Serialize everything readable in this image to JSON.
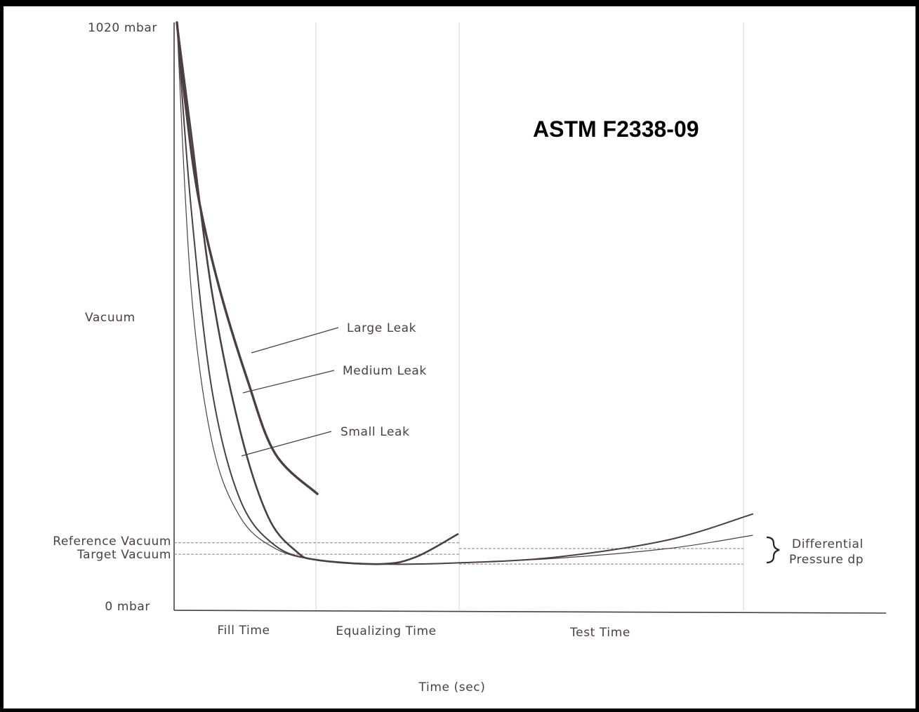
{
  "chart_data": {
    "type": "line",
    "title": "ASTM F2338-09",
    "xlabel": "Time (sec)",
    "ylabel": "Vacuum",
    "y_top_label": "1020 mbar",
    "y_bottom_label": "0 mbar",
    "ylim": [
      0,
      1020
    ],
    "phases": [
      "Fill Time",
      "Equalizing Time",
      "Test Time"
    ],
    "reference_lines": [
      {
        "label": "Reference Vacuum",
        "value": 115
      },
      {
        "label": "Target Vacuum",
        "value": 95
      }
    ],
    "series": [
      {
        "name": "Large Leak",
        "points": [
          [
            0.0,
            1020
          ],
          [
            0.06,
            880
          ],
          [
            0.15,
            720
          ],
          [
            0.3,
            560
          ],
          [
            0.5,
            400
          ],
          [
            0.7,
            270
          ],
          [
            1.0,
            200
          ]
        ]
      },
      {
        "name": "Medium Leak",
        "points": [
          [
            0.0,
            1020
          ],
          [
            0.1,
            830
          ],
          [
            0.25,
            550
          ],
          [
            0.45,
            310
          ],
          [
            0.65,
            160
          ],
          [
            0.85,
            100
          ],
          [
            1.0,
            85
          ],
          [
            1.45,
            78
          ],
          [
            1.7,
            90
          ],
          [
            2.0,
            130
          ]
        ]
      },
      {
        "name": "Small Leak",
        "points": [
          [
            0.0,
            1020
          ],
          [
            0.1,
            700
          ],
          [
            0.25,
            380
          ],
          [
            0.45,
            190
          ],
          [
            0.7,
            110
          ],
          [
            1.0,
            85
          ],
          [
            1.45,
            78
          ],
          [
            2.0,
            80
          ],
          [
            2.7,
            90
          ],
          [
            3.5,
            120
          ],
          [
            4.1,
            165
          ]
        ]
      },
      {
        "name": "",
        "points": [
          [
            0.0,
            1020
          ],
          [
            0.1,
            560
          ],
          [
            0.25,
            290
          ],
          [
            0.45,
            160
          ],
          [
            0.7,
            105
          ],
          [
            1.0,
            85
          ],
          [
            1.45,
            78
          ],
          [
            2.0,
            80
          ],
          [
            2.7,
            88
          ],
          [
            3.5,
            105
          ],
          [
            4.1,
            128
          ]
        ]
      }
    ],
    "annotation": {
      "line1": "Differential",
      "line2": "Pressure dp"
    },
    "grid": false
  }
}
